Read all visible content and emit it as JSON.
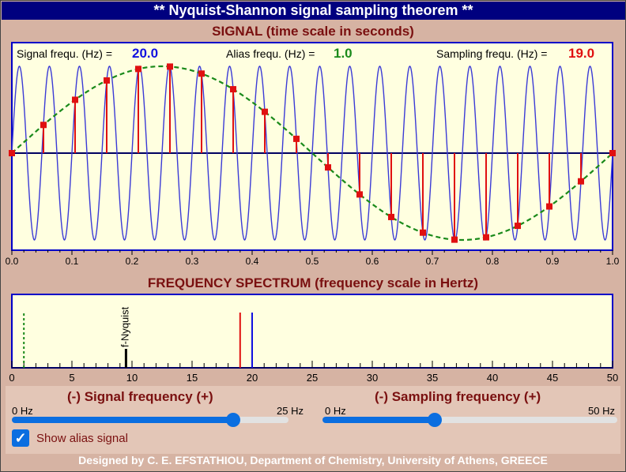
{
  "window": {
    "title": "** Nyquist-Shannon signal sampling theorem  **"
  },
  "signal_panel": {
    "title": "SIGNAL (time scale in seconds)",
    "signal_label": "Signal frequ. (Hz) =",
    "signal_value": "20.0",
    "alias_label": "Alias frequ. (Hz) =",
    "alias_value": "1.0",
    "sampling_label": "Sampling frequ. (Hz) =",
    "sampling_value": "19.0",
    "x_ticks": [
      "0.0",
      "0.1",
      "0.2",
      "0.3",
      "0.4",
      "0.5",
      "0.6",
      "0.7",
      "0.8",
      "0.9",
      "1.0"
    ]
  },
  "spectrum_panel": {
    "title": "FREQUENCY SPECTRUM (frequency scale in Hertz)",
    "nyquist_label": "f-Nyquist",
    "x_ticks": [
      "0",
      "5",
      "10",
      "15",
      "20",
      "25",
      "30",
      "35",
      "40",
      "45",
      "50"
    ]
  },
  "controls": {
    "signal_slider": {
      "title": "(-) Signal frequency (+)",
      "min_label": "0 Hz",
      "max_label": "25 Hz",
      "value_fraction": 0.8
    },
    "sampling_slider": {
      "title": "(-) Sampling frequency (+)",
      "min_label": "0 Hz",
      "max_label": "50 Hz",
      "value_fraction": 0.38
    },
    "alias_checkbox": {
      "label": "Show alias signal",
      "checked": true
    }
  },
  "footer": "Designed by C. E. EFSTATHIOU, Department of Chemistry, University of Athens, GREECE",
  "chart_data": [
    {
      "type": "line",
      "xlabel": "",
      "xlim": [
        0,
        1
      ],
      "ylim": [
        -1,
        1
      ],
      "series": [
        {
          "kind": "signal_sine",
          "frequency_hz": 20.0,
          "amplitude": 1,
          "color": "#3b3bd6"
        },
        {
          "kind": "alias_sine",
          "frequency_hz": 1.0,
          "amplitude": 1,
          "color": "#1a8a1a",
          "dashed": true
        },
        {
          "kind": "samples",
          "sampling_hz": 19.0,
          "color": "#e01010"
        }
      ]
    },
    {
      "type": "bar",
      "xlim": [
        0,
        50
      ],
      "lines": [
        {
          "kind": "alias",
          "x": 1.0,
          "color": "#1a8a1a",
          "dashed": true
        },
        {
          "kind": "nyquist",
          "x": 9.5,
          "color": "#000000"
        },
        {
          "kind": "sampling",
          "x": 19.0,
          "color": "#e01010"
        },
        {
          "kind": "signal",
          "x": 20.0,
          "color": "#1010e0"
        }
      ]
    }
  ]
}
